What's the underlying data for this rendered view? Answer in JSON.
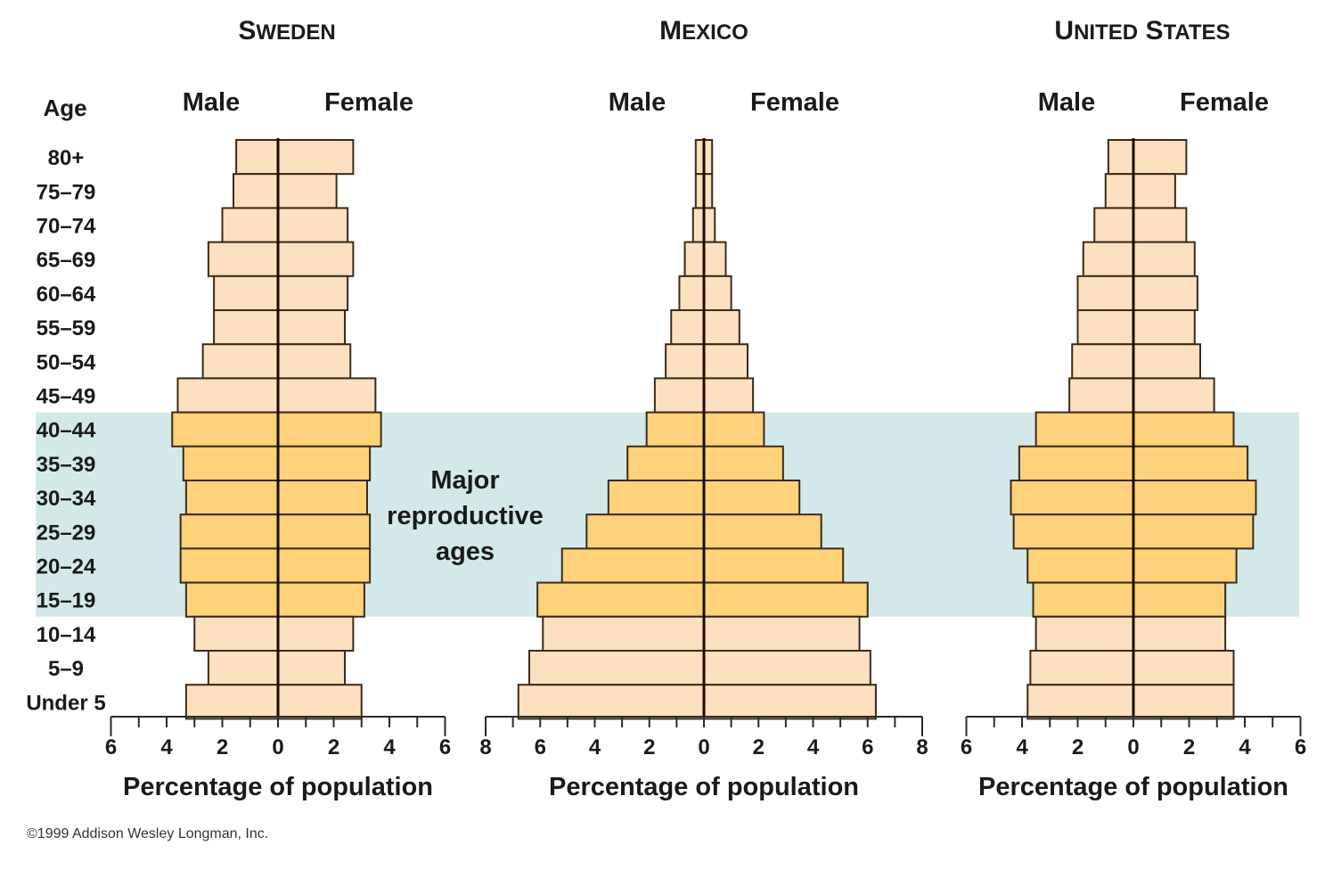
{
  "age_header": "Age",
  "annotation": {
    "lines": [
      "Major",
      "reproductive",
      "ages"
    ],
    "band_from": "15–19",
    "band_to": "40–44"
  },
  "copyright": "©1999 Addison Wesley Longman, Inc.",
  "colors": {
    "bar_normal": "#fde0bf",
    "bar_highlight": "#fdd27a",
    "band": "#d3e9e9",
    "outline": "#3a2a1a"
  },
  "chart_data": [
    {
      "type": "bar",
      "subtype": "population-pyramid",
      "title": "SWEDEN",
      "left_label": "Male",
      "right_label": "Female",
      "xlabel": "Percentage of population",
      "ylabel": "Age",
      "categories": [
        "80+",
        "75–79",
        "70–74",
        "65–69",
        "60–64",
        "55–59",
        "50–54",
        "45–49",
        "40–44",
        "35–39",
        "30–34",
        "25–29",
        "20–24",
        "15–19",
        "10–14",
        "5–9",
        "Under 5"
      ],
      "series": [
        {
          "name": "Male",
          "values": [
            1.5,
            1.6,
            2.0,
            2.5,
            2.3,
            2.3,
            2.7,
            3.6,
            3.8,
            3.4,
            3.3,
            3.5,
            3.5,
            3.3,
            3.0,
            2.5,
            3.3
          ]
        },
        {
          "name": "Female",
          "values": [
            2.7,
            2.1,
            2.5,
            2.7,
            2.5,
            2.4,
            2.6,
            3.5,
            3.7,
            3.3,
            3.2,
            3.3,
            3.3,
            3.1,
            2.7,
            2.4,
            3.0
          ]
        }
      ],
      "xlim": [
        -6,
        6
      ],
      "tick_labels": [
        "6",
        "4",
        "2",
        "0",
        "2",
        "4",
        "6"
      ],
      "grid": false
    },
    {
      "type": "bar",
      "subtype": "population-pyramid",
      "title": "MEXICO",
      "left_label": "Male",
      "right_label": "Female",
      "xlabel": "Percentage of population",
      "ylabel": "Age",
      "categories": [
        "80+",
        "75–79",
        "70–74",
        "65–69",
        "60–64",
        "55–59",
        "50–54",
        "45–49",
        "40–44",
        "35–39",
        "30–34",
        "25–29",
        "20–24",
        "15–19",
        "10–14",
        "5–9",
        "Under 5"
      ],
      "series": [
        {
          "name": "Male",
          "values": [
            0.3,
            0.3,
            0.4,
            0.7,
            0.9,
            1.2,
            1.4,
            1.8,
            2.1,
            2.8,
            3.5,
            4.3,
            5.2,
            6.1,
            5.9,
            6.4,
            6.8
          ]
        },
        {
          "name": "Female",
          "values": [
            0.3,
            0.3,
            0.4,
            0.8,
            1.0,
            1.3,
            1.6,
            1.8,
            2.2,
            2.9,
            3.5,
            4.3,
            5.1,
            6.0,
            5.7,
            6.1,
            6.3
          ]
        }
      ],
      "xlim": [
        -8,
        8
      ],
      "tick_labels": [
        "8",
        "6",
        "4",
        "2",
        "0",
        "2",
        "4",
        "6",
        "8"
      ],
      "grid": false
    },
    {
      "type": "bar",
      "subtype": "population-pyramid",
      "title": "UNITED STATES",
      "left_label": "Male",
      "right_label": "Female",
      "xlabel": "Percentage of population",
      "ylabel": "Age",
      "categories": [
        "80+",
        "75–79",
        "70–74",
        "65–69",
        "60–64",
        "55–59",
        "50–54",
        "45–49",
        "40–44",
        "35–39",
        "30–34",
        "25–29",
        "20–24",
        "15–19",
        "10–14",
        "5–9",
        "Under 5"
      ],
      "series": [
        {
          "name": "Male",
          "values": [
            0.9,
            1.0,
            1.4,
            1.8,
            2.0,
            2.0,
            2.2,
            2.3,
            3.5,
            4.1,
            4.4,
            4.3,
            3.8,
            3.6,
            3.5,
            3.7,
            3.8
          ]
        },
        {
          "name": "Female",
          "values": [
            1.9,
            1.5,
            1.9,
            2.2,
            2.3,
            2.2,
            2.4,
            2.9,
            3.6,
            4.1,
            4.4,
            4.3,
            3.7,
            3.3,
            3.3,
            3.6,
            3.6
          ]
        }
      ],
      "xlim": [
        -6,
        6
      ],
      "tick_labels": [
        "6",
        "4",
        "2",
        "0",
        "2",
        "4",
        "6"
      ],
      "grid": false
    }
  ]
}
